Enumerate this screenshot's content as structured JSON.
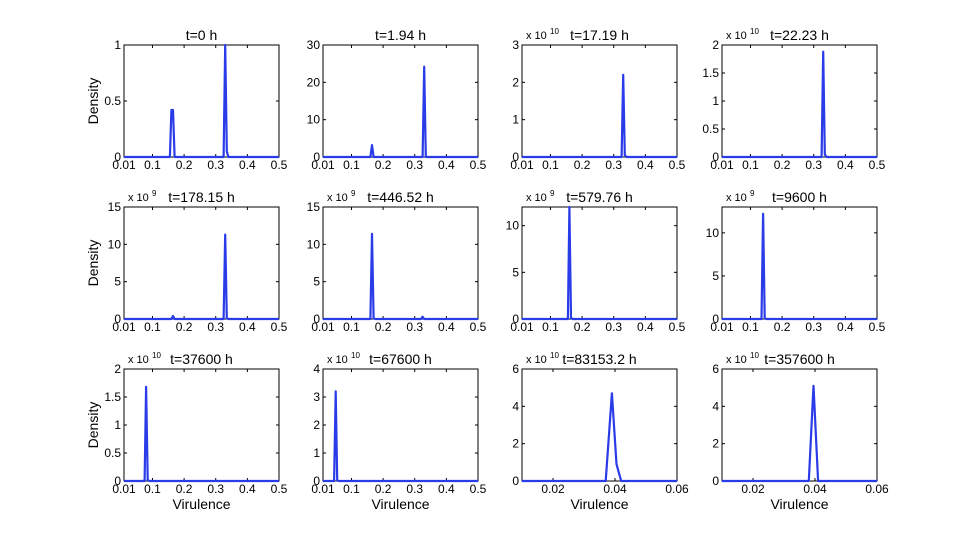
{
  "figure": {
    "ylabel_text": "Density",
    "xlabel_text": "Virulence"
  },
  "chart_data": [
    {
      "type": "line",
      "title": "t=0 h",
      "ylabel": "Density",
      "xlabel": "",
      "scale_base": "",
      "scale_exp": "",
      "xlim": [
        0.01,
        0.5
      ],
      "ylim": [
        0,
        1
      ],
      "xticks": [
        0.01,
        0.1,
        0.2,
        0.3,
        0.4,
        0.5
      ],
      "xticklabels": [
        "0.01",
        "0.1",
        "0.2",
        "0.3",
        "0.4",
        "0.5"
      ],
      "yticks": [
        0,
        0.5,
        1
      ],
      "yticklabels": [
        "0",
        "0.5",
        "1"
      ],
      "series": [
        {
          "color": "#2a3be8",
          "x": [
            0.01,
            0.155,
            0.16,
            0.165,
            0.17,
            0.32,
            0.325,
            0.33,
            0.335,
            0.34,
            0.5
          ],
          "y": [
            0,
            0,
            0.42,
            0.42,
            0,
            0,
            0,
            1.0,
            0.05,
            0,
            0
          ]
        }
      ]
    },
    {
      "type": "line",
      "title": "t=1.94 h",
      "ylabel": "",
      "xlabel": "",
      "scale_base": "",
      "scale_exp": "",
      "xlim": [
        0.01,
        0.5
      ],
      "ylim": [
        0,
        30
      ],
      "xticks": [
        0.01,
        0.1,
        0.2,
        0.3,
        0.4,
        0.5
      ],
      "xticklabels": [
        "0.01",
        "0.1",
        "0.2",
        "0.3",
        "0.4",
        "0.5"
      ],
      "yticks": [
        0,
        10,
        20,
        30
      ],
      "yticklabels": [
        "0",
        "10",
        "20",
        "30"
      ],
      "series": [
        {
          "color": "#2a3be8",
          "x": [
            0.01,
            0.16,
            0.165,
            0.17,
            0.32,
            0.325,
            0.33,
            0.335,
            0.5
          ],
          "y": [
            0,
            0,
            3.2,
            0,
            0,
            0,
            24.2,
            0,
            0
          ]
        }
      ]
    },
    {
      "type": "line",
      "title": "t=17.19 h",
      "ylabel": "",
      "xlabel": "",
      "scale_base": "x 10",
      "scale_exp": "10",
      "xlim": [
        0.01,
        0.5
      ],
      "ylim": [
        0,
        3
      ],
      "xticks": [
        0.01,
        0.1,
        0.2,
        0.3,
        0.4,
        0.5
      ],
      "xticklabels": [
        "0.01",
        "0.1",
        "0.2",
        "0.3",
        "0.4",
        "0.5"
      ],
      "yticks": [
        0,
        1,
        2,
        3
      ],
      "yticklabels": [
        "0",
        "1",
        "2",
        "3"
      ],
      "series": [
        {
          "color": "#2a3be8",
          "x": [
            0.01,
            0.32,
            0.325,
            0.33,
            0.335,
            0.34,
            0.5
          ],
          "y": [
            0,
            0,
            0,
            2.2,
            0.05,
            0,
            0
          ]
        }
      ]
    },
    {
      "type": "line",
      "title": "t=22.23 h",
      "ylabel": "",
      "xlabel": "",
      "scale_base": "x 10",
      "scale_exp": "10",
      "xlim": [
        0.01,
        0.5
      ],
      "ylim": [
        0,
        2
      ],
      "xticks": [
        0.01,
        0.1,
        0.2,
        0.3,
        0.4,
        0.5
      ],
      "xticklabels": [
        "0.01",
        "0.1",
        "0.2",
        "0.3",
        "0.4",
        "0.5"
      ],
      "yticks": [
        0,
        0.5,
        1,
        1.5,
        2
      ],
      "yticklabels": [
        "0",
        "0.5",
        "1",
        "1.5",
        "2"
      ],
      "series": [
        {
          "color": "#2a3be8",
          "x": [
            0.01,
            0.32,
            0.325,
            0.33,
            0.335,
            0.34,
            0.5
          ],
          "y": [
            0,
            0,
            0,
            1.88,
            0.05,
            0,
            0
          ]
        }
      ]
    },
    {
      "type": "line",
      "title": "t=178.15 h",
      "ylabel": "Density",
      "xlabel": "",
      "scale_base": "x 10",
      "scale_exp": "9",
      "xlim": [
        0.01,
        0.5
      ],
      "ylim": [
        0,
        15
      ],
      "xticks": [
        0.01,
        0.1,
        0.2,
        0.3,
        0.4,
        0.5
      ],
      "xticklabels": [
        "0.01",
        "0.1",
        "0.2",
        "0.3",
        "0.4",
        "0.5"
      ],
      "yticks": [
        0,
        5,
        10,
        15
      ],
      "yticklabels": [
        "0",
        "5",
        "10",
        "15"
      ],
      "series": [
        {
          "color": "#2a3be8",
          "x": [
            0.01,
            0.16,
            0.165,
            0.17,
            0.32,
            0.325,
            0.33,
            0.335,
            0.34,
            0.5
          ],
          "y": [
            0,
            0,
            0.4,
            0,
            0,
            0,
            11.3,
            0.1,
            0,
            0
          ]
        }
      ]
    },
    {
      "type": "line",
      "title": "t=446.52 h",
      "ylabel": "",
      "xlabel": "",
      "scale_base": "x 10",
      "scale_exp": "9",
      "xlim": [
        0.01,
        0.5
      ],
      "ylim": [
        0,
        15
      ],
      "xticks": [
        0.01,
        0.1,
        0.2,
        0.3,
        0.4,
        0.5
      ],
      "xticklabels": [
        "0.01",
        "0.1",
        "0.2",
        "0.3",
        "0.4",
        "0.5"
      ],
      "yticks": [
        0,
        5,
        10,
        15
      ],
      "yticklabels": [
        "0",
        "5",
        "10",
        "15"
      ],
      "series": [
        {
          "color": "#2a3be8",
          "x": [
            0.01,
            0.155,
            0.16,
            0.165,
            0.17,
            0.175,
            0.32,
            0.325,
            0.33,
            0.5
          ],
          "y": [
            0,
            0,
            0,
            11.4,
            0.1,
            0,
            0,
            0.3,
            0,
            0
          ]
        }
      ]
    },
    {
      "type": "line",
      "title": "t=579.76 h",
      "ylabel": "",
      "xlabel": "",
      "scale_base": "x 10",
      "scale_exp": "9",
      "xlim": [
        0.01,
        0.5
      ],
      "ylim": [
        0,
        12
      ],
      "xticks": [
        0.01,
        0.1,
        0.2,
        0.3,
        0.4,
        0.5
      ],
      "xticklabels": [
        "0.01",
        "0.1",
        "0.2",
        "0.3",
        "0.4",
        "0.5"
      ],
      "yticks": [
        0,
        5,
        10
      ],
      "yticklabels": [
        "0",
        "5",
        "10"
      ],
      "series": [
        {
          "color": "#2a3be8",
          "x": [
            0.01,
            0.15,
            0.155,
            0.16,
            0.165,
            0.17,
            0.5
          ],
          "y": [
            0,
            0,
            0,
            12,
            0.1,
            0,
            0
          ]
        }
      ]
    },
    {
      "type": "line",
      "title": "t=9600 h",
      "ylabel": "",
      "xlabel": "",
      "scale_base": "x 10",
      "scale_exp": "9",
      "xlim": [
        0.01,
        0.5
      ],
      "ylim": [
        0,
        13
      ],
      "xticks": [
        0.01,
        0.1,
        0.2,
        0.3,
        0.4,
        0.5
      ],
      "xticklabels": [
        "0.01",
        "0.1",
        "0.2",
        "0.3",
        "0.4",
        "0.5"
      ],
      "yticks": [
        0,
        5,
        10
      ],
      "yticklabels": [
        "0",
        "5",
        "10"
      ],
      "series": [
        {
          "color": "#2a3be8",
          "x": [
            0.01,
            0.13,
            0.135,
            0.14,
            0.145,
            0.15,
            0.5
          ],
          "y": [
            0,
            0,
            0,
            12.2,
            0.1,
            0,
            0
          ]
        }
      ]
    },
    {
      "type": "line",
      "title": "t=37600 h",
      "ylabel": "Density",
      "xlabel": "Virulence",
      "scale_base": "x 10",
      "scale_exp": "10",
      "xlim": [
        0.01,
        0.5
      ],
      "ylim": [
        0,
        2
      ],
      "xticks": [
        0.01,
        0.1,
        0.2,
        0.3,
        0.4,
        0.5
      ],
      "xticklabels": [
        "0.01",
        "0.1",
        "0.2",
        "0.3",
        "0.4",
        "0.5"
      ],
      "yticks": [
        0,
        0.5,
        1,
        1.5,
        2
      ],
      "yticklabels": [
        "0",
        "0.5",
        "1",
        "1.5",
        "2"
      ],
      "series": [
        {
          "color": "#2a3be8",
          "x": [
            0.01,
            0.07,
            0.075,
            0.08,
            0.085,
            0.09,
            0.5
          ],
          "y": [
            0,
            0,
            0,
            1.68,
            0.02,
            0,
            0
          ]
        }
      ]
    },
    {
      "type": "line",
      "title": "t=67600 h",
      "ylabel": "",
      "xlabel": "Virulence",
      "scale_base": "x 10",
      "scale_exp": "10",
      "xlim": [
        0.01,
        0.5
      ],
      "ylim": [
        0,
        4
      ],
      "xticks": [
        0.01,
        0.1,
        0.2,
        0.3,
        0.4,
        0.5
      ],
      "xticklabels": [
        "0.01",
        "0.1",
        "0.2",
        "0.3",
        "0.4",
        "0.5"
      ],
      "yticks": [
        0,
        1,
        2,
        3,
        4
      ],
      "yticklabels": [
        "0",
        "1",
        "2",
        "3",
        "4"
      ],
      "series": [
        {
          "color": "#2a3be8",
          "x": [
            0.01,
            0.04,
            0.045,
            0.05,
            0.055,
            0.06,
            0.5
          ],
          "y": [
            0,
            0,
            0,
            3.2,
            0.02,
            0,
            0
          ]
        }
      ]
    },
    {
      "type": "line",
      "title": "t=83153.2 h",
      "ylabel": "",
      "xlabel": "Virulence",
      "scale_base": "x 10",
      "scale_exp": "10",
      "xlim": [
        0.01,
        0.06
      ],
      "ylim": [
        0,
        6
      ],
      "xticks": [
        0.02,
        0.04,
        0.06
      ],
      "xticklabels": [
        "0.02",
        "0.04",
        "0.06"
      ],
      "yticks": [
        0,
        2,
        4,
        6
      ],
      "yticklabels": [
        "0",
        "2",
        "4",
        "6"
      ],
      "series": [
        {
          "color": "#2a3be8",
          "x": [
            0.01,
            0.037,
            0.039,
            0.0405,
            0.042,
            0.06
          ],
          "y": [
            0,
            0,
            4.7,
            0.9,
            0,
            0
          ]
        }
      ]
    },
    {
      "type": "line",
      "title": "t=357600 h",
      "ylabel": "",
      "xlabel": "Virulence",
      "scale_base": "x 10",
      "scale_exp": "10",
      "xlim": [
        0.01,
        0.06
      ],
      "ylim": [
        0,
        6
      ],
      "xticks": [
        0.02,
        0.04,
        0.06
      ],
      "xticklabels": [
        "0.02",
        "0.04",
        "0.06"
      ],
      "yticks": [
        0,
        2,
        4,
        6
      ],
      "yticklabels": [
        "0",
        "2",
        "4",
        "6"
      ],
      "series": [
        {
          "color": "#2a3be8",
          "x": [
            0.01,
            0.038,
            0.0395,
            0.041,
            0.06
          ],
          "y": [
            0,
            0,
            5.1,
            0,
            0
          ]
        }
      ]
    }
  ]
}
